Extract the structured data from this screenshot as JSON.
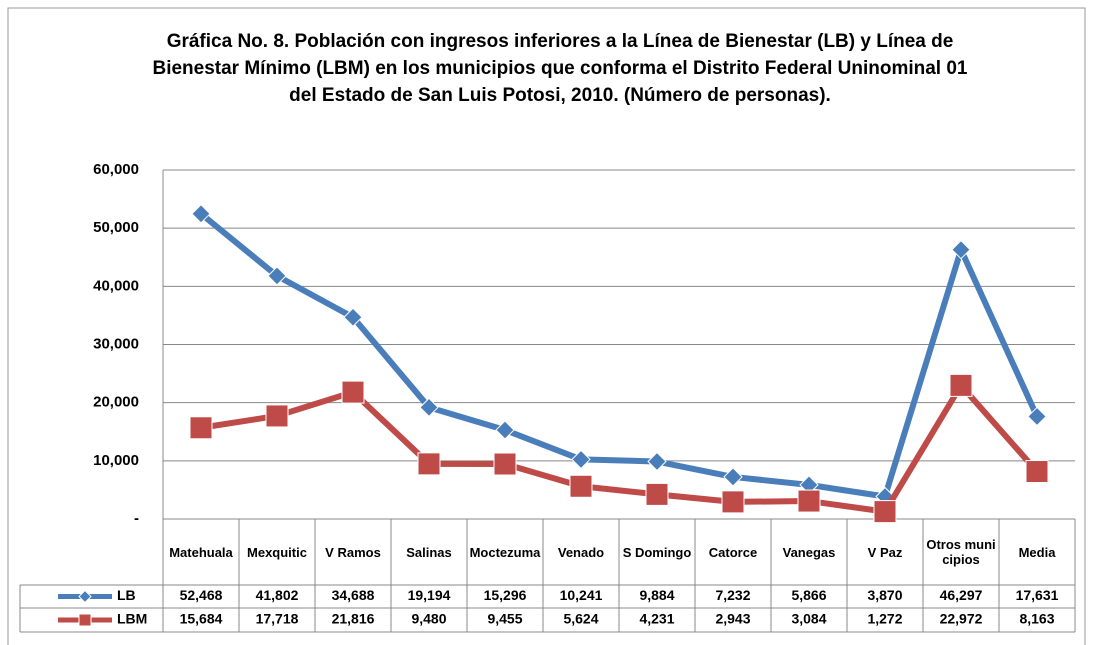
{
  "chart_data": {
    "type": "line",
    "title": "Gráfica No.  8. Población con ingresos inferiores a la Línea de Bienestar (LB) y Línea de Bienestar Mínimo (LBM) en los municipios que conforma el Distrito Federal Uninominal  01 del Estado de San Luis Potosi, 2010. (Número de personas).",
    "categories": [
      "Matehuala",
      "Mexquitic",
      "V Ramos",
      "Salinas",
      "Moctezuma",
      "Venado",
      "S Domingo",
      "Catorce",
      "Vanegas",
      "V Paz",
      "Otros municipios",
      "Media"
    ],
    "series": [
      {
        "name": "LB",
        "color": "#4a7ebb",
        "values": [
          52468,
          41802,
          34688,
          19194,
          15296,
          10241,
          9884,
          7232,
          5866,
          3870,
          46297,
          17631
        ],
        "value_labels": [
          "52,468",
          "41,802",
          "34,688",
          "19,194",
          "15,296",
          "10,241",
          "9,884",
          "7,232",
          "5,866",
          "3,870",
          "46,297",
          "17,631"
        ]
      },
      {
        "name": "LBM",
        "color": "#be4b48",
        "values": [
          15684,
          17718,
          21816,
          9480,
          9455,
          5624,
          4231,
          2943,
          3084,
          1272,
          22972,
          8163
        ],
        "value_labels": [
          "15,684",
          "17,718",
          "21,816",
          "9,480",
          "9,455",
          "5,624",
          "4,231",
          "2,943",
          "3,084",
          "1,272",
          "22,972",
          "8,163"
        ]
      }
    ],
    "ylim": [
      0,
      60000
    ],
    "yticks": [
      {
        "value": 0,
        "label": "-"
      },
      {
        "value": 10000,
        "label": "10,000"
      },
      {
        "value": 20000,
        "label": "20,000"
      },
      {
        "value": 30000,
        "label": "30,000"
      },
      {
        "value": 40000,
        "label": "40,000"
      },
      {
        "value": 50000,
        "label": "50,000"
      },
      {
        "value": 60000,
        "label": "60,000"
      }
    ],
    "grid": true
  }
}
